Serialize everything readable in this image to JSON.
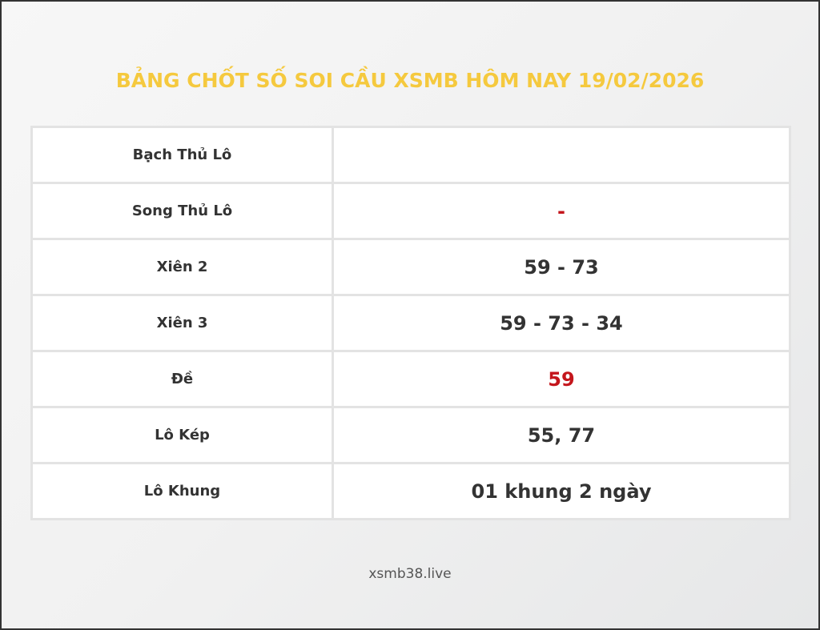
{
  "title": "BẢNG CHỐT SỐ SOI CẦU XSMB HÔM NAY 19/02/2026",
  "rows": [
    {
      "label": "Bạch Thủ Lô",
      "value": ""
    },
    {
      "label": "Song Thủ Lô",
      "value": "-"
    },
    {
      "label": "Xiên 2",
      "value": "59 - 73"
    },
    {
      "label": "Xiên 3",
      "value": "59 - 73 - 34"
    },
    {
      "label": "Đề",
      "value": "59"
    },
    {
      "label": "Lô Kép",
      "value": "55, 77"
    },
    {
      "label": "Lô Khung",
      "value": "01 khung 2 ngày"
    }
  ],
  "footer": "xsmb38.live",
  "colors": {
    "title": "#f5c93e",
    "highlight": "#c4161c",
    "text": "#333333"
  }
}
